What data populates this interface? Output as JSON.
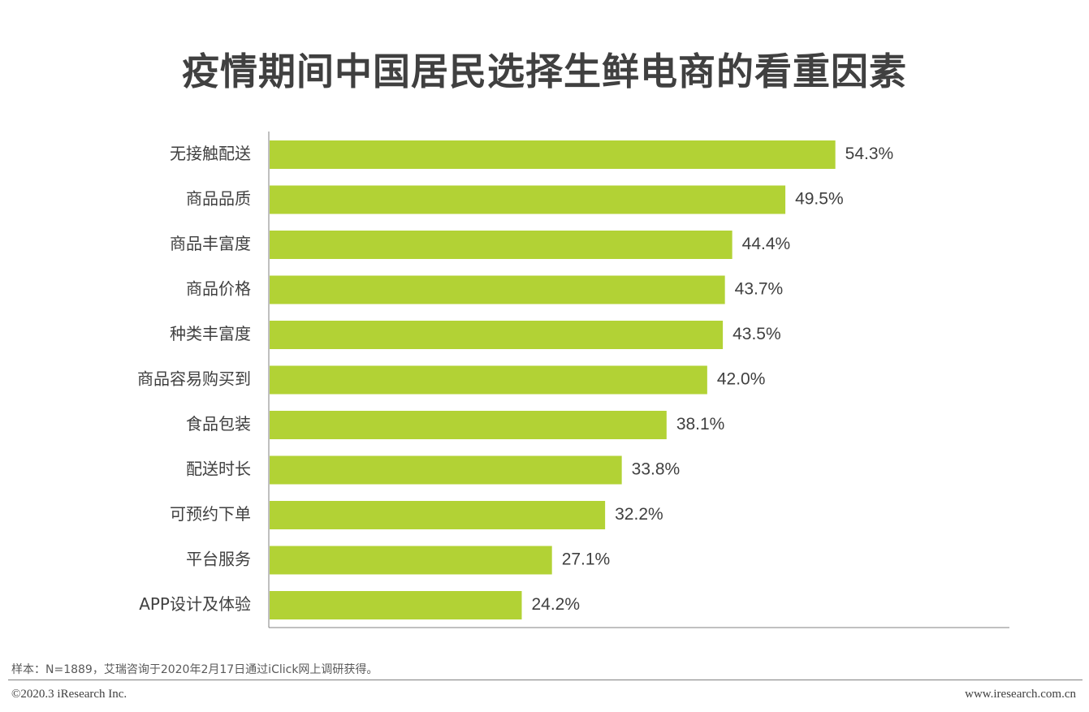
{
  "title": "疫情期间中国居民选择生鲜电商的看重因素",
  "chart_data": {
    "type": "bar",
    "orientation": "horizontal",
    "title": "疫情期间中国居民选择生鲜电商的看重因素",
    "categories": [
      "无接触配送",
      "商品品质",
      "商品丰富度",
      "商品价格",
      "种类丰富度",
      "商品容易购买到",
      "食品包装",
      "配送时长",
      "可预约下单",
      "平台服务",
      "APP设计及体验"
    ],
    "values": [
      54.3,
      49.5,
      44.4,
      43.7,
      43.5,
      42.0,
      38.1,
      33.8,
      32.2,
      27.1,
      24.2
    ],
    "value_labels": [
      "54.3%",
      "49.5%",
      "44.4%",
      "43.7%",
      "43.5%",
      "42.0%",
      "38.1%",
      "33.8%",
      "32.2%",
      "27.1%",
      "24.2%"
    ],
    "unit": "%",
    "bar_color": "#b2d235",
    "grid": false,
    "legend": "none"
  },
  "footer": {
    "source": "样本：N=1889，艾瑞咨询于2020年2月17日通过iClick网上调研获得。",
    "copyright": "©2020.3 iResearch Inc.",
    "website": "www.iresearch.com.cn"
  }
}
